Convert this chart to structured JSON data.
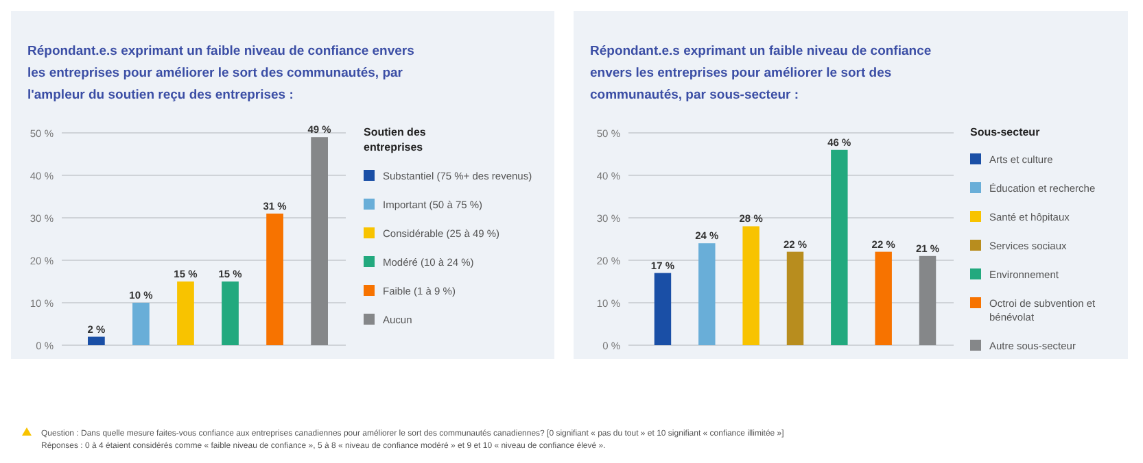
{
  "chart_data": [
    {
      "type": "bar",
      "title": "Répondant.e.s exprimant un faible niveau de confiance envers les entreprises pour améliorer le sort des communautés, par l'ampleur du soutien reçu des entreprises :",
      "legend_title": "Soutien des entreprises",
      "categories": [
        null
      ],
      "series": [
        {
          "name": "Substantiel (75 %+ des revenus)",
          "color": "#1a4fa6",
          "values": [
            2
          ],
          "value_labels": [
            "2 %"
          ]
        },
        {
          "name": "Important (50 à 75 %)",
          "color": "#69aed8",
          "values": [
            10
          ],
          "value_labels": [
            "10 %"
          ]
        },
        {
          "name": "Considérable (25 à 49 %)",
          "color": "#f8c300",
          "values": [
            15
          ],
          "value_labels": [
            "15 %"
          ]
        },
        {
          "name": "Modéré (10 à 24 %)",
          "color": "#22a97e",
          "values": [
            15
          ],
          "value_labels": [
            "15 %"
          ]
        },
        {
          "name": "Faible (1 à 9 %)",
          "color": "#f77300",
          "values": [
            31
          ],
          "value_labels": [
            "31 %"
          ]
        },
        {
          "name": "Aucun",
          "color": "#858789",
          "values": [
            49
          ],
          "value_labels": [
            "49 %"
          ]
        }
      ],
      "ylim": [
        0,
        50
      ],
      "yticks": [
        {
          "value": 0,
          "label": "0 %"
        },
        {
          "value": 10,
          "label": "10 %"
        },
        {
          "value": 20,
          "label": "20 %"
        },
        {
          "value": 30,
          "label": "30 %"
        },
        {
          "value": 40,
          "label": "40 %"
        },
        {
          "value": 50,
          "label": "50 %"
        }
      ],
      "grid": "y",
      "legend": "right",
      "tick_labels": "y",
      "annotations": [
        "Question : Dans quelle mesure faites-vous confiance aux entreprises canadiennes pour améliorer le sort des communautés canadiennes? [0 signifiant « pas du tout » et 10 signifiant « confiance illimitée »]",
        "Réponses : 0 à 4 étaient considérés comme « faible niveau de confiance », 5 à 8 « niveau de confiance modéré » et 9 et 10 « niveau de confiance élevé »."
      ]
    },
    {
      "type": "bar",
      "title": "Répondant.e.s exprimant un faible niveau de confiance envers les entreprises pour améliorer le sort des communautés, par sous-secteur :",
      "legend_title": "Sous-secteur",
      "categories": [
        null
      ],
      "series": [
        {
          "name": "Arts et culture",
          "color": "#1a4fa6",
          "values": [
            17
          ],
          "value_labels": [
            "17 %"
          ]
        },
        {
          "name": "Éducation et recherche",
          "color": "#69aed8",
          "values": [
            24
          ],
          "value_labels": [
            "24 %"
          ]
        },
        {
          "name": "Santé et hôpitaux",
          "color": "#f8c300",
          "values": [
            28
          ],
          "value_labels": [
            "28 %"
          ]
        },
        {
          "name": "Services sociaux",
          "color": "#b88d1e",
          "values": [
            22
          ],
          "value_labels": [
            "22 %"
          ]
        },
        {
          "name": "Environnement",
          "color": "#22a97e",
          "values": [
            46
          ],
          "value_labels": [
            "46 %"
          ]
        },
        {
          "name": "Octroi de subvention et bénévolat",
          "color": "#f77300",
          "values": [
            22
          ],
          "value_labels": [
            "22 %"
          ]
        },
        {
          "name": "Autre sous-secteur",
          "color": "#858789",
          "values": [
            21
          ],
          "value_labels": [
            "21 %"
          ]
        }
      ],
      "ylim": [
        0,
        50
      ],
      "yticks": [
        {
          "value": 0,
          "label": "0 %"
        },
        {
          "value": 10,
          "label": "10 %"
        },
        {
          "value": 20,
          "label": "20 %"
        },
        {
          "value": 30,
          "label": "30 %"
        },
        {
          "value": 40,
          "label": "40 %"
        },
        {
          "value": 50,
          "label": "50 %"
        }
      ],
      "grid": "y",
      "legend": "right",
      "tick_labels": "y"
    }
  ]
}
